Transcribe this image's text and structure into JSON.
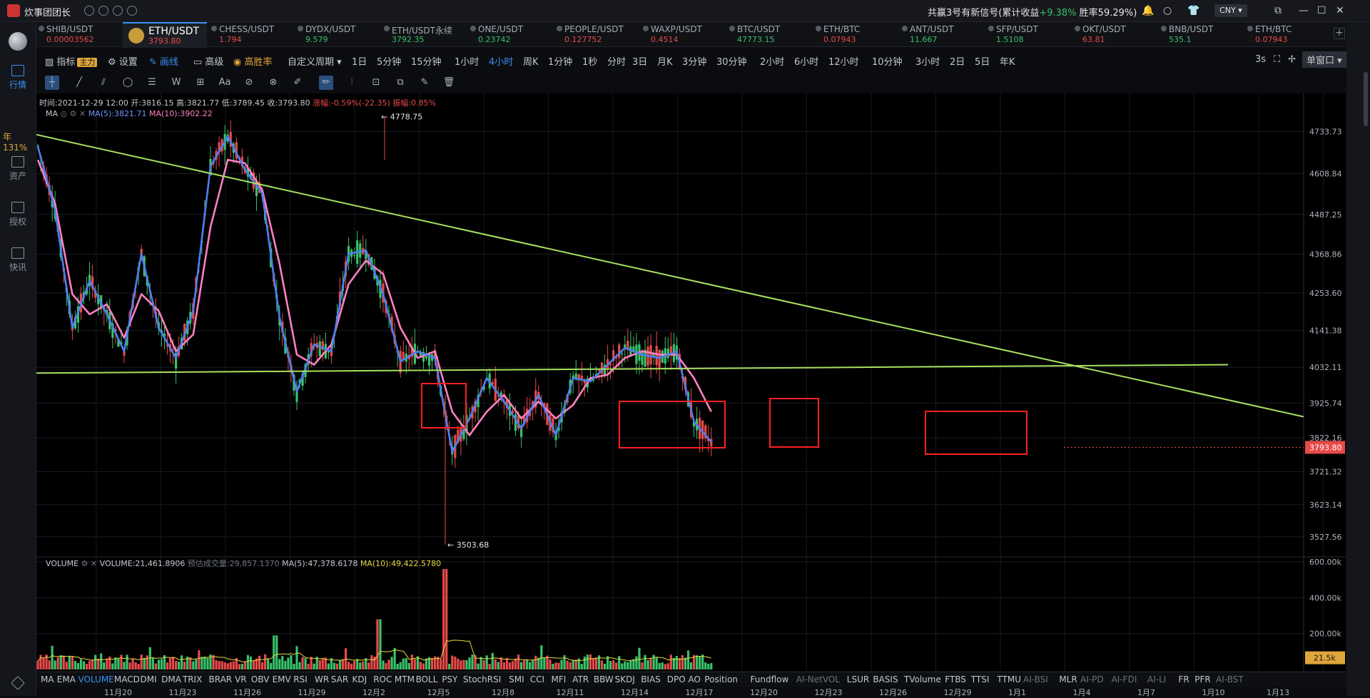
{
  "topbar": {
    "app_name": "炊事团团长",
    "signal_text": "共赢3号有新信号(累计收益",
    "signal_pct": "+9.38%",
    "signal_rate": " 胜率59.29%)",
    "currency": "CNY ▾"
  },
  "leftnav": [
    {
      "label": "行情",
      "active": true
    },
    {
      "label": "资产",
      "active": false
    },
    {
      "label": "授权",
      "active": false
    },
    {
      "label": "快讯",
      "active": false
    }
  ],
  "leftnav_year": "年131%",
  "tabs": [
    {
      "name": "SHIB/USDT",
      "price": "0.00003562",
      "color": "#e84a4a"
    },
    {
      "name": "ETH/USDT",
      "price": "3793.80",
      "color": "#e84a4a",
      "active": true
    },
    {
      "name": "CHESS/USDT",
      "price": "1.794",
      "color": "#e84a4a"
    },
    {
      "name": "DYDX/USDT",
      "price": "9.579",
      "color": "#39c26b"
    },
    {
      "name": "ETH/USDT永续",
      "price": "3792.35",
      "color": "#39c26b"
    },
    {
      "name": "ONE/USDT",
      "price": "0.23742",
      "color": "#39c26b"
    },
    {
      "name": "PEOPLE/USDT",
      "price": "0.127752",
      "color": "#e84a4a"
    },
    {
      "name": "WAXP/USDT",
      "price": "0.4514",
      "color": "#e84a4a"
    },
    {
      "name": "BTC/USDT",
      "price": "47773.15",
      "color": "#39c26b"
    },
    {
      "name": "ETH/BTC",
      "price": "0.07943",
      "color": "#e84a4a"
    },
    {
      "name": "ANT/USDT",
      "price": "11.667",
      "color": "#39c26b"
    },
    {
      "name": "SFP/USDT",
      "price": "1.5108",
      "color": "#39c26b"
    },
    {
      "name": "OKT/USDT",
      "price": "63.81",
      "color": "#e84a4a"
    },
    {
      "name": "BNB/USDT",
      "price": "535.1",
      "color": "#39c26b"
    },
    {
      "name": "ETH/BTC",
      "price": "0.07943",
      "color": "#e84a4a"
    }
  ],
  "toolbar": {
    "indicator": "指标",
    "indicator_tag": "主力",
    "settings": "设置",
    "draw": "画线",
    "advanced": "高级",
    "winrate": "高胜率",
    "custom_period": "自定义周期 ▾",
    "periods": [
      "1日",
      "5分钟",
      "15分钟",
      "1小时",
      "4小时",
      "周K",
      "1分钟",
      "1秒",
      "分时",
      "3日",
      "月K",
      "3分钟",
      "30分钟",
      "2小时",
      "6小时",
      "12小时",
      "10分钟",
      "3小时",
      "2日",
      "5日",
      "年K"
    ],
    "active_period": "4小时",
    "refresh": "3s",
    "window_mode": "单窗口 ▾"
  },
  "chart_info": {
    "time": "时间:2021-12-29 12:00",
    "open": "开:3816.15",
    "high": "高:3821.77",
    "low": "低:3789.45",
    "close": "收:3793.80",
    "change": "涨幅:-0.59%(-22.35)",
    "amplitude": "振幅:0.85%"
  },
  "ma_legend": {
    "name": "MA",
    "ma5": "MA(5):3821.71",
    "ma10": "MA(10):3902.22"
  },
  "vol_legend": {
    "name": "VOLUME",
    "vol": "VOLUME:21,461.8906",
    "est": "预估成交量:29,857.1370",
    "ma5": "MA(5):47,378.6178",
    "ma10": "MA(10):49,422.5780"
  },
  "chart_data": {
    "type": "candlestick",
    "title": "ETH/USDT 4小时",
    "y_ticks": [
      4733.73,
      4608.84,
      4487.25,
      4368.86,
      4253.6,
      4141.38,
      4032.11,
      3925.74,
      3822.16,
      3721.32,
      3623.14,
      3527.56
    ],
    "y_tick_labels": [
      "4733.73",
      "4608.84",
      "4487.25",
      "4368.86",
      "4253.60",
      "4141.38",
      "4032.11",
      "3925.74",
      "3822.16",
      "3721.32",
      "3623.14",
      "3527.56"
    ],
    "ylim": [
      3470,
      4835
    ],
    "last_price": "3793.80",
    "high_label": "← 4778.75",
    "low_label": "← 3503.68",
    "vol_ticks": [
      "600.00k",
      "400.00k",
      "200.00k"
    ],
    "vol_last": "21.5k",
    "x_ticks": [
      "11月20",
      "11月23",
      "11月26",
      "11月29",
      "12月2",
      "12月5",
      "12月8",
      "12月11",
      "12月14",
      "12月17",
      "12月20",
      "12月23",
      "12月26",
      "12月29",
      "1月1",
      "1月4",
      "1月7",
      "1月10",
      "1月13"
    ],
    "ma5": [
      [
        "11-20",
        4690
      ],
      [
        "11-21",
        4500
      ],
      [
        "11-22",
        4150
      ],
      [
        "11-23",
        4290
      ],
      [
        "11-24",
        4190
      ],
      [
        "11-25",
        4080
      ],
      [
        "11-26",
        4370
      ],
      [
        "11-27",
        4150
      ],
      [
        "11-28",
        4060
      ],
      [
        "11-29",
        4200
      ],
      [
        "11-30",
        4630
      ],
      [
        "12-01",
        4720
      ],
      [
        "12-02",
        4620
      ],
      [
        "12-03",
        4550
      ],
      [
        "12-04",
        4180
      ],
      [
        "12-05",
        3960
      ],
      [
        "12-06",
        4100
      ],
      [
        "12-07",
        4080
      ],
      [
        "12-08",
        4370
      ],
      [
        "12-09",
        4380
      ],
      [
        "12-10",
        4250
      ],
      [
        "12-11",
        4050
      ],
      [
        "12-12",
        4080
      ],
      [
        "12-13",
        4060
      ],
      [
        "12-14",
        3780
      ],
      [
        "12-15",
        3880
      ],
      [
        "12-16",
        4000
      ],
      [
        "12-17",
        3930
      ],
      [
        "12-18",
        3850
      ],
      [
        "12-19",
        3950
      ],
      [
        "12-20",
        3830
      ],
      [
        "12-21",
        4000
      ],
      [
        "12-22",
        3990
      ],
      [
        "12-23",
        4040
      ],
      [
        "12-24",
        4090
      ],
      [
        "12-25",
        4070
      ],
      [
        "12-26",
        4060
      ],
      [
        "12-27",
        4080
      ],
      [
        "12-28",
        3870
      ],
      [
        "12-29",
        3810
      ]
    ],
    "ma10": [
      [
        "11-20",
        4650
      ],
      [
        "11-21",
        4520
      ],
      [
        "11-22",
        4250
      ],
      [
        "11-23",
        4190
      ],
      [
        "11-24",
        4220
      ],
      [
        "11-25",
        4120
      ],
      [
        "11-26",
        4250
      ],
      [
        "11-27",
        4200
      ],
      [
        "11-28",
        4080
      ],
      [
        "11-29",
        4130
      ],
      [
        "11-30",
        4450
      ],
      [
        "12-01",
        4650
      ],
      [
        "12-02",
        4640
      ],
      [
        "12-03",
        4560
      ],
      [
        "12-04",
        4340
      ],
      [
        "12-05",
        4070
      ],
      [
        "12-06",
        4040
      ],
      [
        "12-07",
        4100
      ],
      [
        "12-08",
        4280
      ],
      [
        "12-09",
        4350
      ],
      [
        "12-10",
        4310
      ],
      [
        "12-11",
        4150
      ],
      [
        "12-12",
        4060
      ],
      [
        "12-13",
        4080
      ],
      [
        "12-14",
        3900
      ],
      [
        "12-15",
        3830
      ],
      [
        "12-16",
        3900
      ],
      [
        "12-17",
        3950
      ],
      [
        "12-18",
        3880
      ],
      [
        "12-19",
        3930
      ],
      [
        "12-20",
        3880
      ],
      [
        "12-21",
        3920
      ],
      [
        "12-22",
        4000
      ],
      [
        "12-23",
        4010
      ],
      [
        "12-24",
        4060
      ],
      [
        "12-25",
        4080
      ],
      [
        "12-26",
        4070
      ],
      [
        "12-27",
        4070
      ],
      [
        "12-28",
        4000
      ],
      [
        "12-29",
        3900
      ]
    ]
  },
  "bottom_tabs": [
    "MA",
    "EMA",
    "VOLUME",
    "MACD",
    "DMI",
    "DMA",
    "TRIX",
    "BRAR",
    "VR",
    "OBV",
    "EMV",
    "RSI",
    "WR",
    "SAR",
    "KDJ",
    "ROC",
    "MTM",
    "BOLL",
    "PSY",
    "StochRSI",
    "SMI",
    "CCI",
    "MFI",
    "ATR",
    "BBW",
    "SKDJ",
    "BIAS",
    "DPO",
    "AO",
    "Position",
    "Fundflow",
    "AI-NetVOL",
    "LSUR",
    "BASIS",
    "TVolume",
    "FTBS",
    "TTSI",
    "TTMU",
    "AI-BSI",
    "MLR",
    "AI-PD",
    "AI-FDI",
    "AI-LI",
    "FR",
    "PFR",
    "AI-BST"
  ],
  "bottom_active": "VOLUME",
  "colors": {
    "up": "#39c26b",
    "down": "#e84a4a",
    "ma5": "#4f7ef0",
    "ma10": "#ff80c0",
    "trend": "#a8e05f",
    "box": "#ff2020"
  }
}
